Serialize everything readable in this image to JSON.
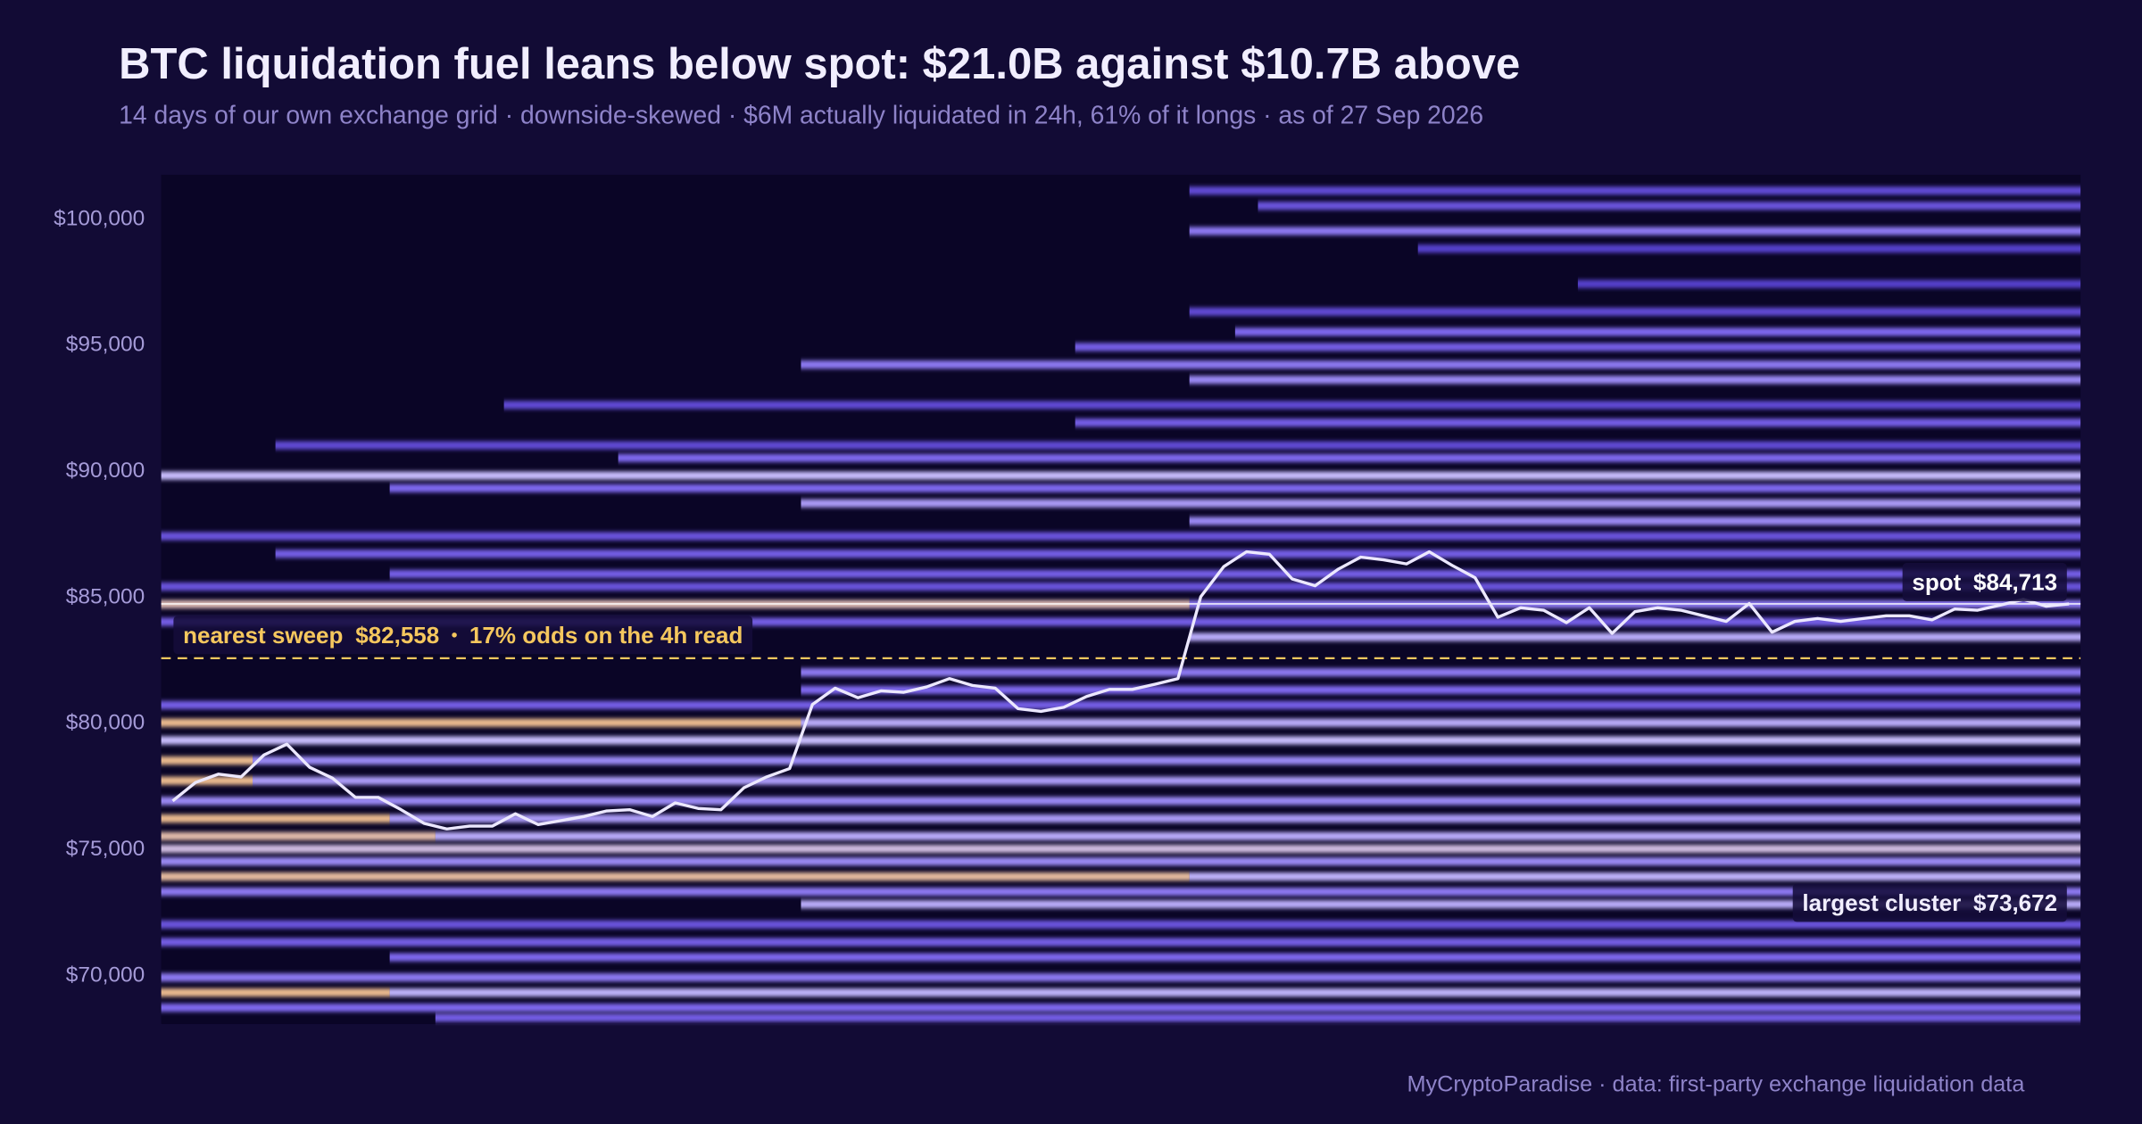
{
  "chart_data": {
    "type": "heatmap",
    "title": "BTC liquidation fuel leans below spot: $21.0B against $10.7B above",
    "subtitle": "14 days of our own exchange grid · downside-skewed · $6M actually liquidated in 24h, 61% of it longs · as of 27 Sep 2026",
    "ylim": [
      68050,
      101730
    ],
    "yticks": [
      {
        "value": 70000,
        "label": "$70,000"
      },
      {
        "value": 75000,
        "label": "$75,000"
      },
      {
        "value": 80000,
        "label": "$80,000"
      },
      {
        "value": 85000,
        "label": "$85,000"
      },
      {
        "value": 90000,
        "label": "$90,000"
      },
      {
        "value": 95000,
        "label": "$95,000"
      },
      {
        "value": 100000,
        "label": "$100,000"
      }
    ],
    "background": "#0a0526",
    "colorscale": [
      "#1c1165",
      "#4532b8",
      "#7a66ee",
      "#c6bcfd",
      "#f4b95a"
    ],
    "bands": [
      {
        "price": 101100,
        "from": 45,
        "to": 83,
        "level": 0.35
      },
      {
        "price": 100500,
        "from": 48,
        "to": 83,
        "level": 0.4
      },
      {
        "price": 99500,
        "from": 45,
        "to": 83,
        "level": 0.55
      },
      {
        "price": 98800,
        "from": 55,
        "to": 83,
        "level": 0.3
      },
      {
        "price": 97400,
        "from": 62,
        "to": 83,
        "level": 0.3
      },
      {
        "price": 96300,
        "from": 45,
        "to": 83,
        "level": 0.35
      },
      {
        "price": 95500,
        "from": 47,
        "to": 83,
        "level": 0.5
      },
      {
        "price": 94900,
        "from": 40,
        "to": 83,
        "level": 0.45
      },
      {
        "price": 94200,
        "from": 28,
        "to": 83,
        "level": 0.55
      },
      {
        "price": 93600,
        "from": 45,
        "to": 83,
        "level": 0.6
      },
      {
        "price": 92600,
        "from": 15,
        "to": 83,
        "level": 0.35
      },
      {
        "price": 91900,
        "from": 40,
        "to": 83,
        "level": 0.45
      },
      {
        "price": 91000,
        "from": 5,
        "to": 83,
        "level": 0.35
      },
      {
        "price": 90500,
        "from": 20,
        "to": 83,
        "level": 0.5
      },
      {
        "price": 89800,
        "from": 0,
        "to": 83,
        "level": 0.75
      },
      {
        "price": 89300,
        "from": 10,
        "to": 83,
        "level": 0.5
      },
      {
        "price": 88700,
        "from": 28,
        "to": 83,
        "level": 0.65
      },
      {
        "price": 88000,
        "from": 45,
        "to": 83,
        "level": 0.6
      },
      {
        "price": 87400,
        "from": 0,
        "to": 83,
        "level": 0.4
      },
      {
        "price": 86700,
        "from": 5,
        "to": 83,
        "level": 0.45
      },
      {
        "price": 85900,
        "from": 10,
        "to": 83,
        "level": 0.45
      },
      {
        "price": 85400,
        "from": 0,
        "to": 83,
        "level": 0.4
      },
      {
        "price": 84700,
        "from": 0,
        "to": 44,
        "level": 0.88
      },
      {
        "price": 84700,
        "from": 45,
        "to": 83,
        "level": 0.55
      },
      {
        "price": 84000,
        "from": 0,
        "to": 83,
        "level": 0.45
      },
      {
        "price": 83400,
        "from": 45,
        "to": 83,
        "level": 0.7
      },
      {
        "price": 82000,
        "from": 28,
        "to": 83,
        "level": 0.55
      },
      {
        "price": 81300,
        "from": 28,
        "to": 83,
        "level": 0.5
      },
      {
        "price": 80700,
        "from": 0,
        "to": 83,
        "level": 0.45
      },
      {
        "price": 80000,
        "from": 0,
        "to": 27,
        "level": 0.95
      },
      {
        "price": 80000,
        "from": 28,
        "to": 83,
        "level": 0.7
      },
      {
        "price": 79300,
        "from": 0,
        "to": 83,
        "level": 0.75
      },
      {
        "price": 78500,
        "from": 0,
        "to": 3,
        "level": 0.95
      },
      {
        "price": 78500,
        "from": 4,
        "to": 83,
        "level": 0.6
      },
      {
        "price": 77700,
        "from": 0,
        "to": 3,
        "level": 0.95
      },
      {
        "price": 77700,
        "from": 4,
        "to": 83,
        "level": 0.65
      },
      {
        "price": 76900,
        "from": 0,
        "to": 83,
        "level": 0.6
      },
      {
        "price": 76200,
        "from": 0,
        "to": 9,
        "level": 0.95
      },
      {
        "price": 76200,
        "from": 10,
        "to": 83,
        "level": 0.65
      },
      {
        "price": 75500,
        "from": 0,
        "to": 11,
        "level": 0.9
      },
      {
        "price": 75500,
        "from": 12,
        "to": 83,
        "level": 0.7
      },
      {
        "price": 75000,
        "from": 0,
        "to": 83,
        "level": 0.8
      },
      {
        "price": 74500,
        "from": 0,
        "to": 83,
        "level": 0.6
      },
      {
        "price": 73900,
        "from": 0,
        "to": 44,
        "level": 0.92
      },
      {
        "price": 73900,
        "from": 45,
        "to": 83,
        "level": 0.72
      },
      {
        "price": 73300,
        "from": 0,
        "to": 83,
        "level": 0.55
      },
      {
        "price": 72800,
        "from": 28,
        "to": 83,
        "level": 0.7
      },
      {
        "price": 72000,
        "from": 0,
        "to": 83,
        "level": 0.4
      },
      {
        "price": 71300,
        "from": 0,
        "to": 83,
        "level": 0.45
      },
      {
        "price": 70700,
        "from": 10,
        "to": 83,
        "level": 0.5
      },
      {
        "price": 69900,
        "from": 0,
        "to": 83,
        "level": 0.55
      },
      {
        "price": 69300,
        "from": 0,
        "to": 9,
        "level": 0.95
      },
      {
        "price": 69300,
        "from": 10,
        "to": 83,
        "level": 0.72
      },
      {
        "price": 68700,
        "from": 0,
        "to": 83,
        "level": 0.5
      },
      {
        "price": 68300,
        "from": 12,
        "to": 83,
        "level": 0.45
      }
    ],
    "price": {
      "color": "#ece8ff",
      "values": [
        76900,
        77630,
        77960,
        77850,
        78720,
        79150,
        78230,
        77800,
        77040,
        77040,
        76550,
        76010,
        75790,
        75900,
        75900,
        76390,
        75960,
        76120,
        76280,
        76500,
        76550,
        76280,
        76820,
        76600,
        76550,
        77420,
        77850,
        78180,
        80720,
        81370,
        80990,
        81260,
        81210,
        81420,
        81750,
        81480,
        81370,
        80560,
        80450,
        80610,
        81040,
        81320,
        81320,
        81530,
        81750,
        85000,
        86190,
        86780,
        86680,
        85700,
        85430,
        86080,
        86570,
        86460,
        86300,
        86780,
        86240,
        85750,
        84180,
        84560,
        84460,
        83970,
        84560,
        83540,
        84400,
        84560,
        84460,
        84240,
        84020,
        84730,
        83590,
        84020,
        84130,
        84020,
        84130,
        84240,
        84240,
        84080,
        84510,
        84460,
        84670,
        84890,
        84620,
        84713
      ]
    },
    "spot": {
      "label": "spot",
      "value": 84713,
      "value_label": "$84,713"
    },
    "largest_cluster": {
      "label": "largest cluster",
      "value": 73672,
      "value_label": "$73,672"
    },
    "nearest_sweep": {
      "label": "nearest sweep",
      "value": 82558,
      "value_label": "$82,558",
      "note": "17% odds on the 4h read",
      "color": "#f5c75e"
    },
    "source": "MyCryptoParadise  ·  data: first-party exchange liquidation data"
  }
}
